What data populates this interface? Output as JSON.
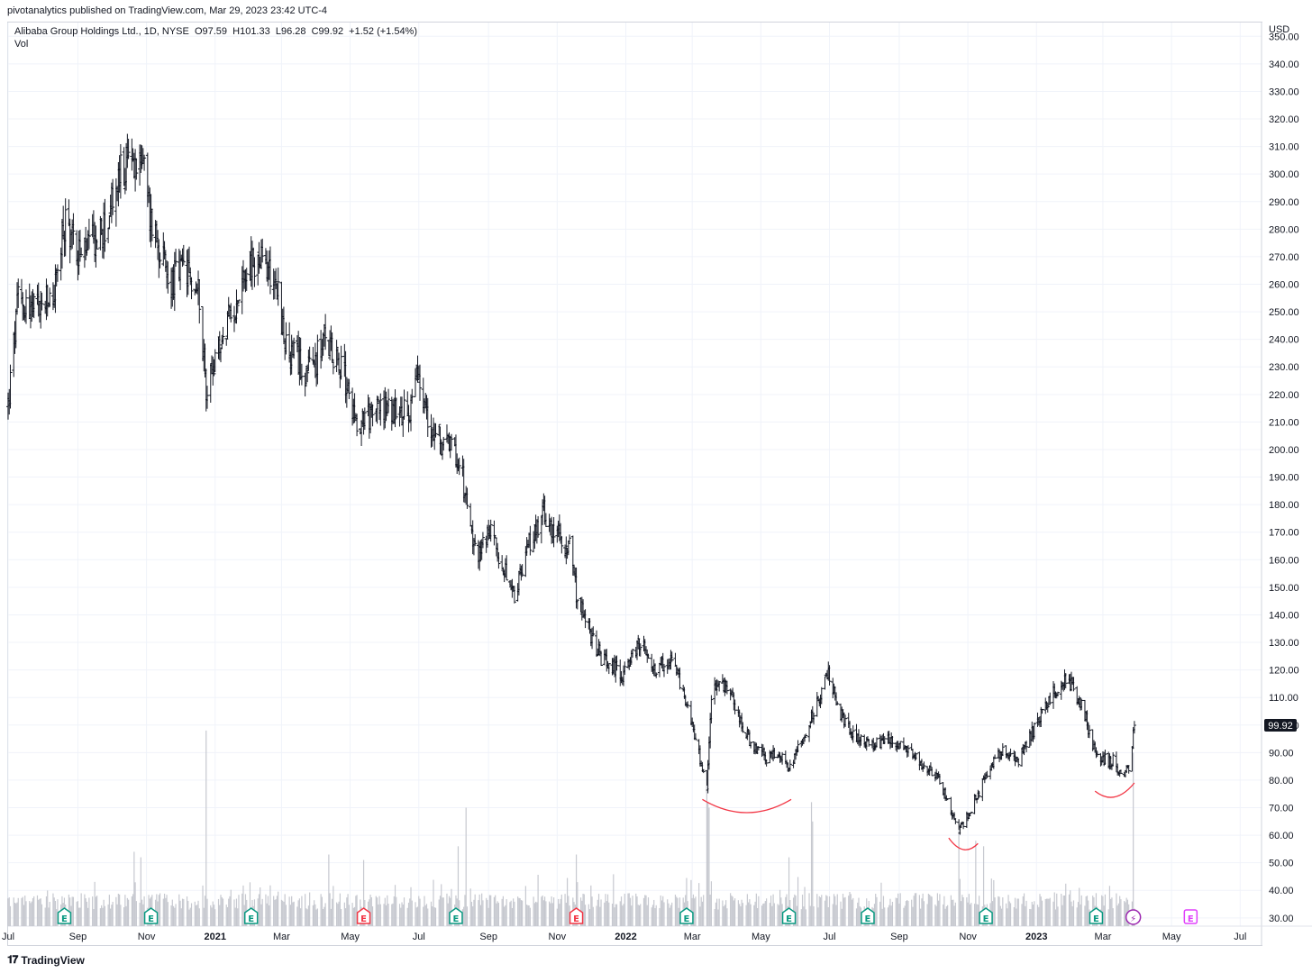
{
  "header": {
    "publish_line": "pivotanalytics published on TradingView.com, Mar 29, 2023 23:42 UTC-4",
    "symbol_line": "Alibaba Group Holdings Ltd., 1D, NYSE  O97.59  H101.33  L96.28  C99.92  +1.52 (+1.54%)",
    "volume_label": "Vol"
  },
  "footer": {
    "brand": "TradingView",
    "logo_icon": "tradingview-logo-icon"
  },
  "colors": {
    "bar": "#131722",
    "volume": "#c6c8cf",
    "grid": "#f0f3fa",
    "annotation": "#f23645",
    "earnings_green": "#089981",
    "earnings_red": "#f23645",
    "event_purple": "#9c27b0",
    "earnings_magenta": "#e040fb"
  },
  "chart_data": {
    "type": "ohlc",
    "y_axis": {
      "currency": "USD",
      "ticks": [
        "350.00",
        "340.00",
        "330.00",
        "320.00",
        "310.00",
        "300.00",
        "290.00",
        "280.00",
        "270.00",
        "260.00",
        "250.00",
        "240.00",
        "230.00",
        "220.00",
        "210.00",
        "200.00",
        "190.00",
        "180.00",
        "170.00",
        "160.00",
        "150.00",
        "140.00",
        "130.00",
        "120.00",
        "110.00",
        "100.00",
        "90.00",
        "80.00",
        "70.00",
        "60.00",
        "50.00",
        "40.00",
        "30.00"
      ],
      "range": [
        27,
        355
      ]
    },
    "x_axis": {
      "labels": [
        {
          "text": "Jul",
          "bold": false
        },
        {
          "text": "Sep",
          "bold": false
        },
        {
          "text": "Nov",
          "bold": false
        },
        {
          "text": "2021",
          "bold": true
        },
        {
          "text": "Mar",
          "bold": false
        },
        {
          "text": "May",
          "bold": false
        },
        {
          "text": "Jul",
          "bold": false
        },
        {
          "text": "Sep",
          "bold": false
        },
        {
          "text": "Nov",
          "bold": false
        },
        {
          "text": "2022",
          "bold": true
        },
        {
          "text": "Mar",
          "bold": false
        },
        {
          "text": "May",
          "bold": false
        },
        {
          "text": "Jul",
          "bold": false
        },
        {
          "text": "Sep",
          "bold": false
        },
        {
          "text": "Nov",
          "bold": false
        },
        {
          "text": "2023",
          "bold": true
        },
        {
          "text": "Mar",
          "bold": false
        },
        {
          "text": "May",
          "bold": false
        },
        {
          "text": "Jul",
          "bold": false
        }
      ],
      "start": "2020-07-01",
      "end": "2023-07-20"
    },
    "last_price": "99.92",
    "price_anchors": [
      [
        "2020-07-01",
        216
      ],
      [
        "2020-07-10",
        255
      ],
      [
        "2020-07-24",
        250
      ],
      [
        "2020-08-10",
        255
      ],
      [
        "2020-08-21",
        283
      ],
      [
        "2020-09-04",
        270
      ],
      [
        "2020-09-25",
        280
      ],
      [
        "2020-10-09",
        300
      ],
      [
        "2020-10-27",
        310
      ],
      [
        "2020-11-04",
        285
      ],
      [
        "2020-11-12",
        275
      ],
      [
        "2020-11-20",
        260
      ],
      [
        "2020-12-04",
        265
      ],
      [
        "2020-12-18",
        256
      ],
      [
        "2020-12-24",
        222
      ],
      [
        "2021-01-08",
        240
      ],
      [
        "2021-01-20",
        255
      ],
      [
        "2021-01-28",
        266
      ],
      [
        "2021-02-12",
        268
      ],
      [
        "2021-02-24",
        262
      ],
      [
        "2021-03-05",
        236
      ],
      [
        "2021-03-26",
        228
      ],
      [
        "2021-04-09",
        240
      ],
      [
        "2021-04-23",
        230
      ],
      [
        "2021-05-07",
        210
      ],
      [
        "2021-05-28",
        215
      ],
      [
        "2021-06-11",
        213
      ],
      [
        "2021-06-25",
        215
      ],
      [
        "2021-06-30",
        227
      ],
      [
        "2021-07-09",
        210
      ],
      [
        "2021-07-27",
        200
      ],
      [
        "2021-08-06",
        198
      ],
      [
        "2021-08-20",
        162
      ],
      [
        "2021-09-03",
        170
      ],
      [
        "2021-09-24",
        145
      ],
      [
        "2021-10-06",
        165
      ],
      [
        "2021-10-20",
        177
      ],
      [
        "2021-11-03",
        168
      ],
      [
        "2021-11-12",
        165
      ],
      [
        "2021-11-19",
        145
      ],
      [
        "2021-12-10",
        124
      ],
      [
        "2021-12-30",
        118
      ],
      [
        "2022-01-14",
        130
      ],
      [
        "2022-01-28",
        120
      ],
      [
        "2022-02-11",
        124
      ],
      [
        "2022-02-25",
        105
      ],
      [
        "2022-03-14",
        78
      ],
      [
        "2022-03-18",
        112
      ],
      [
        "2022-04-01",
        114
      ],
      [
        "2022-04-20",
        95
      ],
      [
        "2022-05-06",
        88
      ],
      [
        "2022-05-12",
        90
      ],
      [
        "2022-05-27",
        85
      ],
      [
        "2022-06-17",
        105
      ],
      [
        "2022-06-30",
        118
      ],
      [
        "2022-07-15",
        100
      ],
      [
        "2022-08-05",
        92
      ],
      [
        "2022-08-26",
        95
      ],
      [
        "2022-09-15",
        88
      ],
      [
        "2022-10-07",
        80
      ],
      [
        "2022-10-24",
        61
      ],
      [
        "2022-11-04",
        70
      ],
      [
        "2022-11-18",
        82
      ],
      [
        "2022-12-02",
        92
      ],
      [
        "2022-12-16",
        87
      ],
      [
        "2023-01-06",
        105
      ],
      [
        "2023-01-27",
        118
      ],
      [
        "2023-02-10",
        108
      ],
      [
        "2023-02-23",
        88
      ],
      [
        "2023-03-10",
        87
      ],
      [
        "2023-03-16",
        82
      ],
      [
        "2023-03-24",
        85
      ],
      [
        "2023-03-29",
        99.92
      ]
    ],
    "volume_spikes": [
      [
        "2020-10-21",
        54
      ],
      [
        "2020-10-27",
        52
      ],
      [
        "2020-12-24",
        98
      ],
      [
        "2021-04-12",
        53
      ],
      [
        "2021-05-13",
        51
      ],
      [
        "2021-08-05",
        56
      ],
      [
        "2021-08-12",
        70
      ],
      [
        "2021-11-18",
        53
      ],
      [
        "2022-03-14",
        78
      ],
      [
        "2022-03-15",
        72
      ],
      [
        "2022-03-16",
        70
      ],
      [
        "2022-05-26",
        52
      ],
      [
        "2022-06-15",
        72
      ],
      [
        "2022-06-16",
        65
      ],
      [
        "2022-10-24",
        62
      ],
      [
        "2022-11-08",
        58
      ],
      [
        "2022-11-15",
        56
      ],
      [
        "2023-03-28",
        90
      ]
    ],
    "events": [
      {
        "date": "2020-08-20",
        "type": "earnings",
        "color": "green",
        "label": "E"
      },
      {
        "date": "2020-11-05",
        "type": "earnings",
        "color": "green",
        "label": "E"
      },
      {
        "date": "2021-02-02",
        "type": "earnings",
        "color": "green",
        "label": "E"
      },
      {
        "date": "2021-05-13",
        "type": "earnings",
        "color": "red",
        "label": "E"
      },
      {
        "date": "2021-08-03",
        "type": "earnings",
        "color": "green",
        "label": "E"
      },
      {
        "date": "2021-11-18",
        "type": "earnings",
        "color": "red",
        "label": "E"
      },
      {
        "date": "2022-02-24",
        "type": "earnings",
        "color": "green",
        "label": "E"
      },
      {
        "date": "2022-05-26",
        "type": "earnings",
        "color": "green",
        "label": "E"
      },
      {
        "date": "2022-08-04",
        "type": "earnings",
        "color": "green",
        "label": "E"
      },
      {
        "date": "2022-11-17",
        "type": "earnings",
        "color": "green",
        "label": "E"
      },
      {
        "date": "2023-02-23",
        "type": "earnings",
        "color": "green",
        "label": "E"
      },
      {
        "date": "2023-03-28",
        "type": "event",
        "color": "purple",
        "label": "⚡"
      },
      {
        "date": "2023-05-18",
        "type": "earnings",
        "color": "magenta",
        "label": "E"
      }
    ],
    "annotations": [
      {
        "type": "arc",
        "start": [
          "2022-03-10",
          73
        ],
        "end": [
          "2022-05-28",
          73
        ],
        "trough": 67
      },
      {
        "type": "arc",
        "start": [
          "2022-10-15",
          59
        ],
        "end": [
          "2022-11-10",
          57
        ],
        "trough": 54
      },
      {
        "type": "arc",
        "start": [
          "2023-02-22",
          76
        ],
        "end": [
          "2023-03-29",
          79
        ],
        "trough": 73
      }
    ],
    "grid": true,
    "legend": "top-left"
  }
}
